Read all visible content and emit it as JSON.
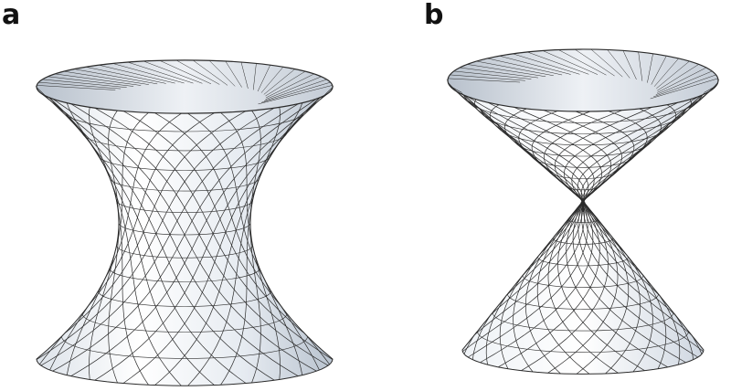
{
  "panels": {
    "a": {
      "label": "a"
    },
    "b": {
      "label": "b"
    }
  },
  "colors": {
    "surface": "#f3f5f8",
    "surface_shade": "#c9d1dc",
    "mesh": "#2b2b2b",
    "background": "#ffffff"
  }
}
